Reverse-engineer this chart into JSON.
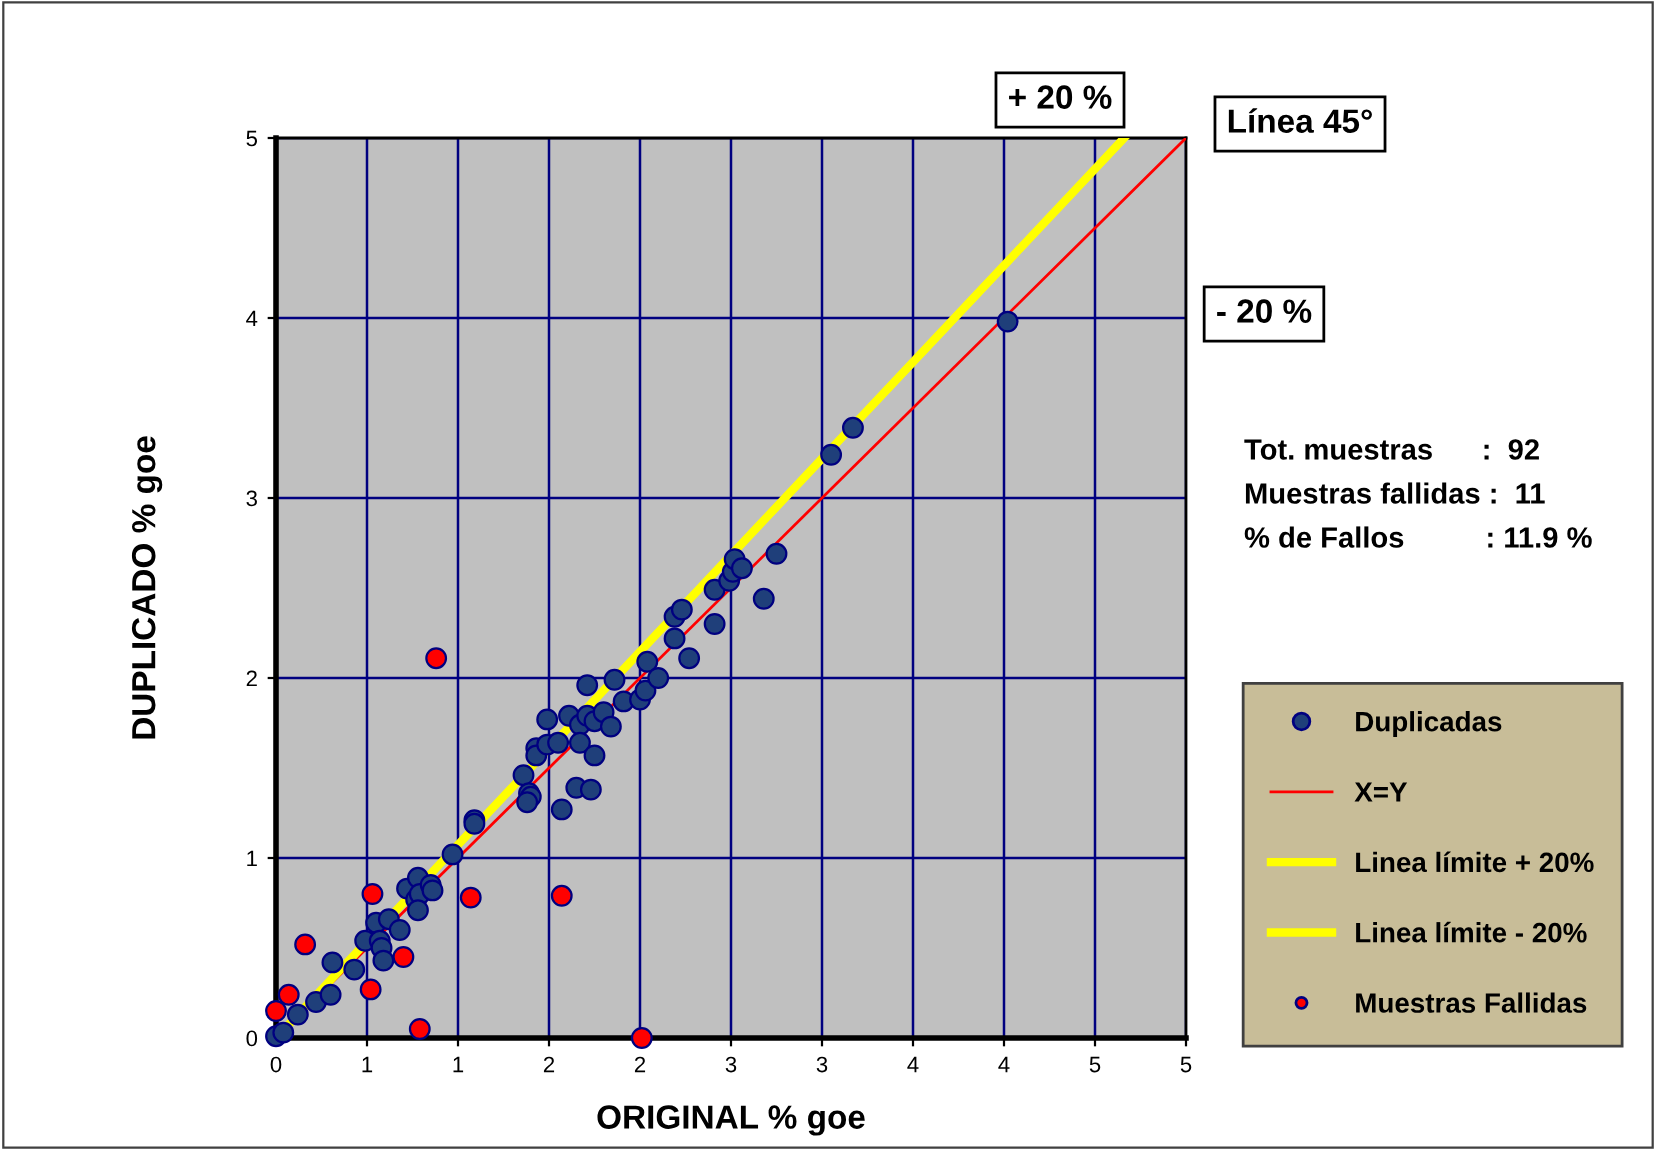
{
  "chart_data": {
    "type": "scatter",
    "xlabel": "ORIGINAL % goe",
    "ylabel": "DUPLICADO % goe",
    "xlim": [
      0,
      5
    ],
    "ylim": [
      0,
      5
    ],
    "xticks": [
      0,
      {
        "value": 0.5,
        "label": "1"
      },
      1,
      {
        "value": 1.5,
        "label": "2"
      },
      2,
      {
        "value": 2.5,
        "label": "3"
      },
      3,
      {
        "value": 3.5,
        "label": "4"
      },
      4,
      {
        "value": 4.5,
        "label": "5"
      },
      5
    ],
    "yticks": [
      0,
      1,
      2,
      3,
      4,
      5
    ],
    "grid": true,
    "legend": "right",
    "series": [
      {
        "name": "Duplicadas",
        "marker": "circle",
        "color": "#1f3f7a",
        "x": [
          0.0,
          0.04,
          0.12,
          0.22,
          0.3,
          0.31,
          0.43,
          0.49,
          0.55,
          0.57,
          0.58,
          0.59,
          0.62,
          0.68,
          0.72,
          0.77,
          0.78,
          0.79,
          0.78,
          0.85,
          0.86,
          0.97,
          1.09,
          1.09,
          1.36,
          1.39,
          1.4,
          1.38,
          1.57,
          1.43,
          1.43,
          1.49,
          1.55,
          1.49,
          1.61,
          1.67,
          1.71,
          1.75,
          1.8,
          1.84,
          1.91,
          1.86,
          1.71,
          1.67,
          1.75,
          1.65,
          1.73,
          2.0,
          2.03,
          2.04,
          2.1,
          2.27,
          2.19,
          2.19,
          2.23,
          2.41,
          2.41,
          2.49,
          2.51,
          2.52,
          2.56,
          2.75,
          2.68,
          3.05,
          3.17,
          4.02
        ],
        "values": [
          0.01,
          0.03,
          0.13,
          0.2,
          0.24,
          0.42,
          0.38,
          0.54,
          0.64,
          0.54,
          0.5,
          0.43,
          0.66,
          0.6,
          0.83,
          0.77,
          0.89,
          0.8,
          0.71,
          0.85,
          0.82,
          1.02,
          1.21,
          1.19,
          1.46,
          1.36,
          1.34,
          1.31,
          1.27,
          1.61,
          1.57,
          1.63,
          1.64,
          1.77,
          1.79,
          1.74,
          1.79,
          1.76,
          1.81,
          1.73,
          1.87,
          1.99,
          1.96,
          1.64,
          1.57,
          1.39,
          1.38,
          1.88,
          1.93,
          2.09,
          2.0,
          2.11,
          2.22,
          2.34,
          2.38,
          2.49,
          2.3,
          2.54,
          2.59,
          2.66,
          2.61,
          2.69,
          2.44,
          3.24,
          3.39,
          3.98
        ]
      },
      {
        "name": "X=Y",
        "type": "line",
        "color": "#ff0000",
        "x": [
          0,
          5
        ],
        "values": [
          0,
          5
        ]
      },
      {
        "name": "Linea límite + 20%",
        "type": "line",
        "color": "#ffff00",
        "x": [
          0,
          4.66
        ],
        "values": [
          0,
          5
        ]
      },
      {
        "name": "Linea límite - 20%",
        "type": "line",
        "color": "#ffff00"
      },
      {
        "name": "Muestras Fallidas",
        "marker": "circle",
        "color": "#ff0000",
        "x": [
          0.88,
          0.53,
          1.07,
          1.57,
          0.16,
          0.7,
          0.07,
          0.52,
          0.0,
          0.79,
          2.01
        ],
        "values": [
          2.11,
          0.8,
          0.78,
          0.79,
          0.52,
          0.45,
          0.24,
          0.27,
          0.15,
          0.05,
          0.0
        ]
      }
    ],
    "annotations": [
      "+ 20 %",
      "Línea 45°",
      "- 20 %",
      "Tot. muestras      :  92",
      "Muestras fallidas :  11",
      "% de Fallos          : 11.9 %"
    ]
  }
}
